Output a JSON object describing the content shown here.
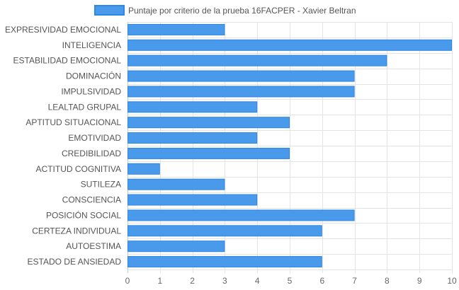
{
  "chart_data": {
    "type": "bar",
    "orientation": "horizontal",
    "legend": {
      "position": "top",
      "label": "Puntaje por criterio de la prueba 16FACPER - Xavier Beltran"
    },
    "categories": [
      "EXPRESIVIDAD EMOCIONAL",
      "INTELIGENCIA",
      "ESTABILIDAD EMOCIONAL",
      "DOMINACIÓN",
      "IMPULSIVIDAD",
      "LEALTAD GRUPAL",
      "APTITUD SITUACIONAL",
      "EMOTIVIDAD",
      "CREDIBILIDAD",
      "ACTITUD COGNITIVA",
      "SUTILEZA",
      "CONSCIENCIA",
      "POSICIÓN SOCIAL",
      "CERTEZA INDIVIDUAL",
      "AUTOESTIMA",
      "ESTADO DE ANSIEDAD"
    ],
    "series": [
      {
        "name": "Puntaje por criterio de la prueba 16FACPER - Xavier Beltran",
        "values": [
          3,
          10,
          8,
          7,
          7,
          4,
          5,
          4,
          5,
          1,
          3,
          4,
          7,
          6,
          3,
          6
        ]
      }
    ],
    "xlim": [
      0,
      10
    ],
    "xticks": [
      0,
      1,
      2,
      3,
      4,
      5,
      6,
      7,
      8,
      9,
      10
    ],
    "grid": true,
    "colors": {
      "bar_fill": "#4a9aeb",
      "bar_border": "#2e86e5",
      "grid": "#e4e4e4",
      "axis": "#c8c8c8"
    }
  }
}
